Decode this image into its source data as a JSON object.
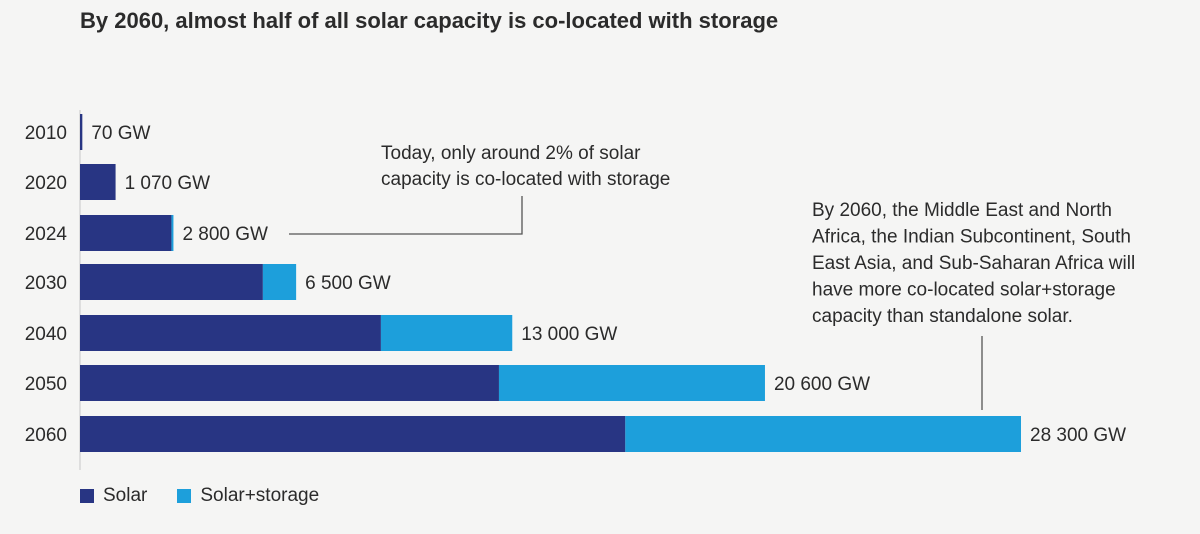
{
  "page": {
    "title": "By 2060, almost half of all solar capacity is co-located with storage"
  },
  "colors": {
    "solar": "#283583",
    "solar_storage": "#1d9fdb",
    "axis": "#c8c8c8",
    "annotation_line": "#555555"
  },
  "chart_data": {
    "type": "bar",
    "orientation": "horizontal",
    "stacked": true,
    "title": "By 2060, almost half of all solar capacity is co-located with storage",
    "unit": "GW",
    "categories": [
      "2010",
      "2020",
      "2024",
      "2030",
      "2040",
      "2050",
      "2060"
    ],
    "series": [
      {
        "name": "Solar",
        "values": [
          70,
          1070,
          2750,
          5500,
          9050,
          12600,
          16400
        ]
      },
      {
        "name": "Solar+storage",
        "values": [
          0,
          0,
          50,
          1000,
          3950,
          8000,
          11900
        ]
      }
    ],
    "total_labels": [
      "70 GW",
      "1 070 GW",
      "2 800 GW",
      "6 500 GW",
      "13 000 GW",
      "20 600 GW",
      "28 300 GW"
    ],
    "xlim": [
      0,
      28300
    ],
    "legend_position": "bottom-left",
    "annotations": [
      {
        "text_lines": [
          "Today, only around 2% of solar",
          "capacity is co-located with storage"
        ],
        "points_to": "2024"
      },
      {
        "text_lines": [
          "By 2060, the Middle East and North",
          "Africa, the Indian Subcontinent, South",
          "East Asia, and Sub-Saharan Africa will",
          "have more co-located solar+storage",
          "capacity than standalone solar."
        ],
        "points_to": "2060"
      }
    ]
  }
}
